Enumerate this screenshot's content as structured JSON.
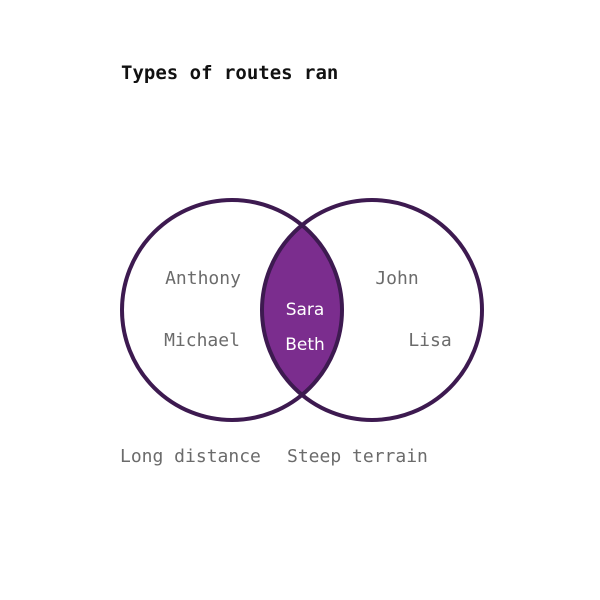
{
  "title": "Types of routes ran",
  "colors": {
    "outline": "#3d1a50",
    "intersection": "#7b2d8e",
    "text": "#6b6b6b",
    "title": "#111111"
  },
  "sets": [
    {
      "label": "Long distance",
      "only_members": [
        "Anthony",
        "Michael"
      ]
    },
    {
      "label": "Steep terrain",
      "only_members": [
        "John",
        "Lisa"
      ]
    }
  ],
  "intersection": {
    "members": [
      "Sara",
      "Beth"
    ]
  }
}
